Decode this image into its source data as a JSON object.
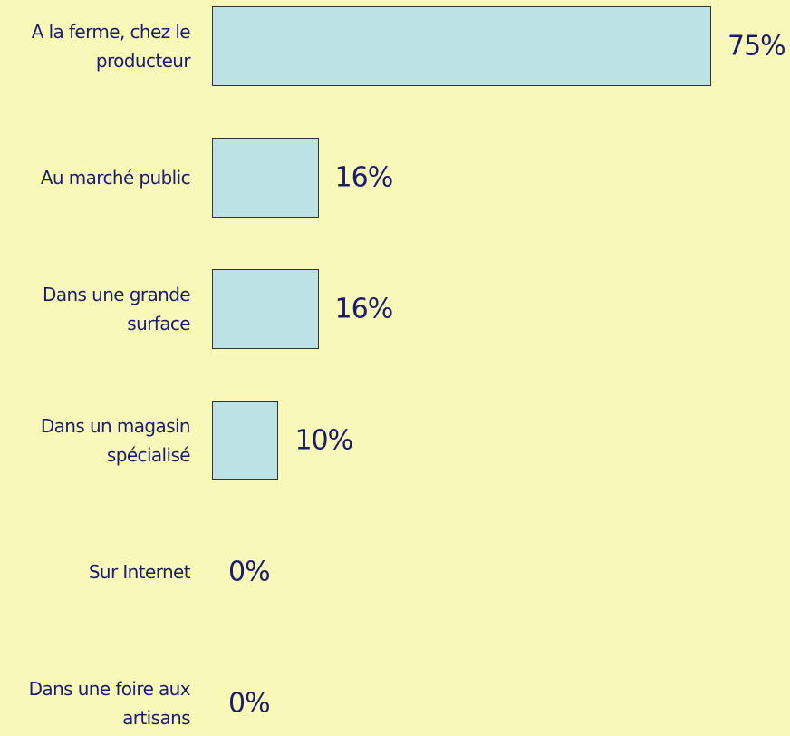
{
  "chart_data": {
    "type": "bar",
    "orientation": "horizontal",
    "categories": [
      "A la ferme, chez le producteur",
      "Au marché public",
      "Dans une grande surface",
      "Dans un magasin spécialisé",
      "Sur Internet",
      "Dans une foire aux artisans"
    ],
    "values": [
      75,
      16,
      16,
      10,
      0,
      0
    ],
    "value_labels": [
      "75%",
      "16%",
      "16%",
      "10%",
      "0%",
      "0%"
    ],
    "color": "#bde2e6"
  }
}
